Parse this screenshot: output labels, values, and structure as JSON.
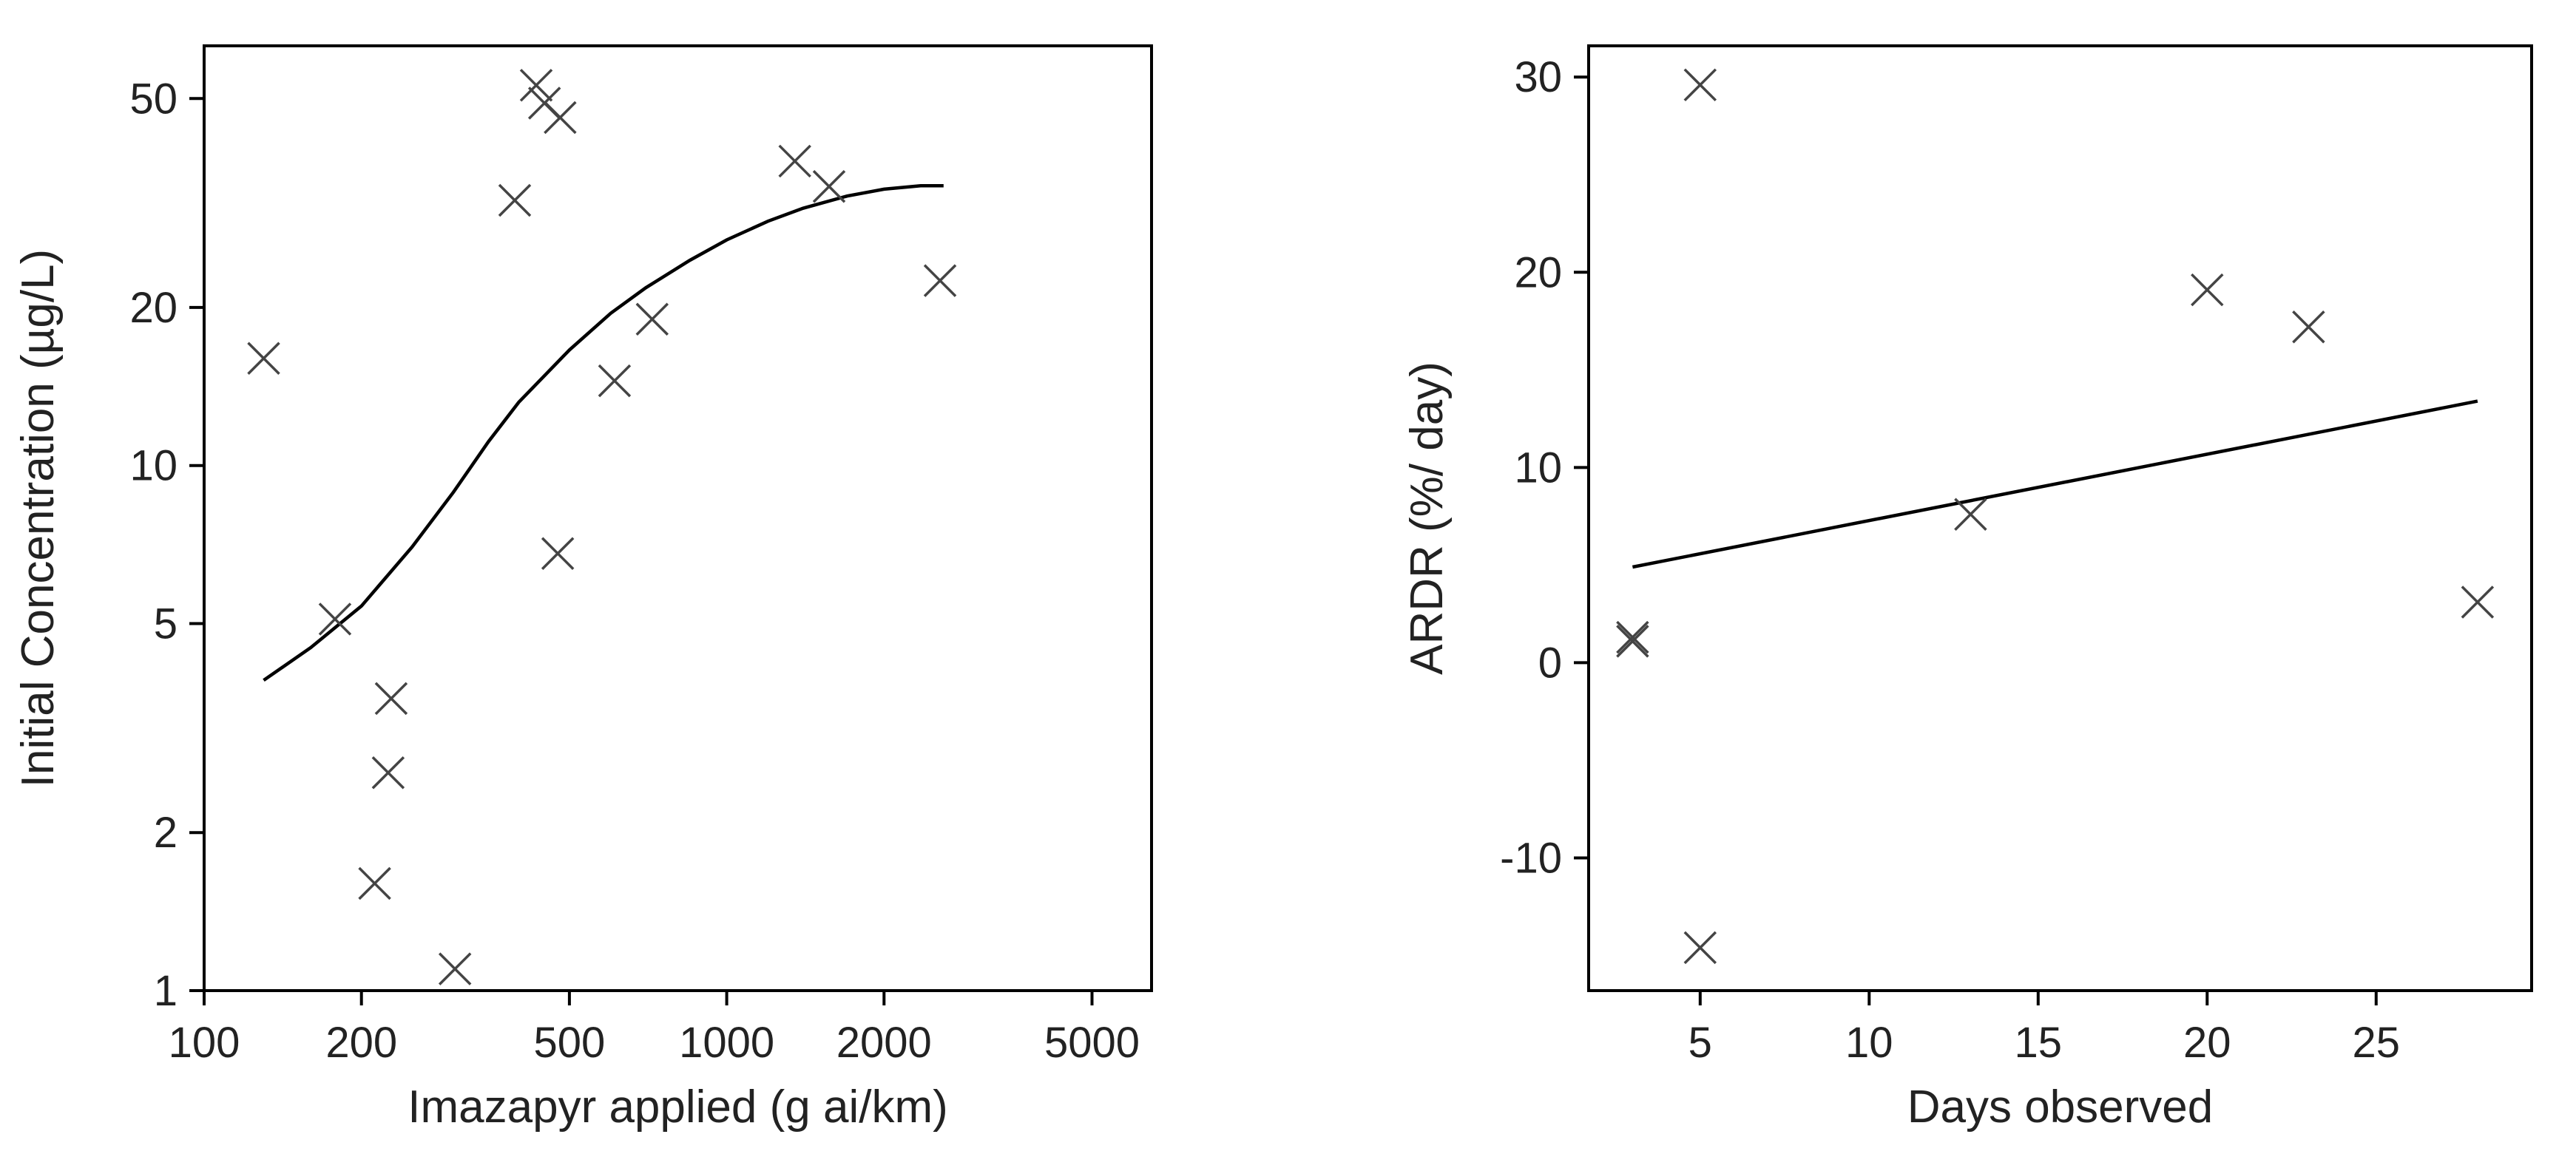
{
  "chart_data": [
    {
      "type": "scatter",
      "xlabel": "Imazapyr applied (g ai/km)",
      "ylabel": "Initial Concentration (µg/L)",
      "x_scale": "log",
      "y_scale": "log",
      "xlim": [
        100,
        6500
      ],
      "ylim": [
        1,
        63
      ],
      "x_ticks": [
        100,
        200,
        500,
        1000,
        2000,
        5000
      ],
      "x_tick_labels": [
        "100",
        "200",
        "500",
        "1000",
        "2000",
        "5000"
      ],
      "y_ticks": [
        1,
        2,
        5,
        10,
        20,
        50
      ],
      "y_tick_labels": [
        "1",
        "2",
        "5",
        "10",
        "20",
        "50"
      ],
      "grid": false,
      "points": [
        {
          "x": 130,
          "y": 16
        },
        {
          "x": 178,
          "y": 5.1
        },
        {
          "x": 212,
          "y": 1.6
        },
        {
          "x": 225,
          "y": 2.6
        },
        {
          "x": 228,
          "y": 3.6
        },
        {
          "x": 302,
          "y": 1.1
        },
        {
          "x": 393,
          "y": 32
        },
        {
          "x": 432,
          "y": 53
        },
        {
          "x": 448,
          "y": 49
        },
        {
          "x": 475,
          "y": 6.8
        },
        {
          "x": 480,
          "y": 46
        },
        {
          "x": 610,
          "y": 14.5
        },
        {
          "x": 720,
          "y": 19
        },
        {
          "x": 1350,
          "y": 38
        },
        {
          "x": 1570,
          "y": 34
        },
        {
          "x": 2560,
          "y": 22.5
        }
      ],
      "fit_line": [
        {
          "x": 130,
          "y": 3.9
        },
        {
          "x": 160,
          "y": 4.5
        },
        {
          "x": 200,
          "y": 5.4
        },
        {
          "x": 250,
          "y": 7.0
        },
        {
          "x": 300,
          "y": 8.9
        },
        {
          "x": 350,
          "y": 11.1
        },
        {
          "x": 400,
          "y": 13.2
        },
        {
          "x": 500,
          "y": 16.6
        },
        {
          "x": 600,
          "y": 19.5
        },
        {
          "x": 700,
          "y": 21.8
        },
        {
          "x": 850,
          "y": 24.6
        },
        {
          "x": 1000,
          "y": 26.9
        },
        {
          "x": 1200,
          "y": 29.2
        },
        {
          "x": 1400,
          "y": 30.9
        },
        {
          "x": 1700,
          "y": 32.6
        },
        {
          "x": 2000,
          "y": 33.6
        },
        {
          "x": 2350,
          "y": 34.1
        },
        {
          "x": 2600,
          "y": 34.1
        }
      ]
    },
    {
      "type": "scatter",
      "xlabel": "Days observed",
      "ylabel": "ARDR (%/ day)",
      "xlim": [
        1.7,
        29.6
      ],
      "ylim": [
        -16.8,
        31.6
      ],
      "x_ticks": [
        5,
        10,
        15,
        20,
        25
      ],
      "x_tick_labels": [
        "5",
        "10",
        "15",
        "20",
        "25"
      ],
      "y_ticks": [
        -10,
        0,
        10,
        20,
        30
      ],
      "y_tick_labels": [
        "-10",
        "0",
        "10",
        "20",
        "30"
      ],
      "grid": false,
      "points": [
        {
          "x": 3,
          "y": 1.3
        },
        {
          "x": 3,
          "y": 1.1
        },
        {
          "x": 5,
          "y": 29.6
        },
        {
          "x": 5,
          "y": -14.6
        },
        {
          "x": 13,
          "y": 7.6
        },
        {
          "x": 20,
          "y": 19.1
        },
        {
          "x": 23,
          "y": 17.2
        },
        {
          "x": 28,
          "y": 3.1
        }
      ],
      "fit_line": [
        {
          "x": 3,
          "y": 4.9
        },
        {
          "x": 28,
          "y": 13.4
        }
      ]
    }
  ]
}
